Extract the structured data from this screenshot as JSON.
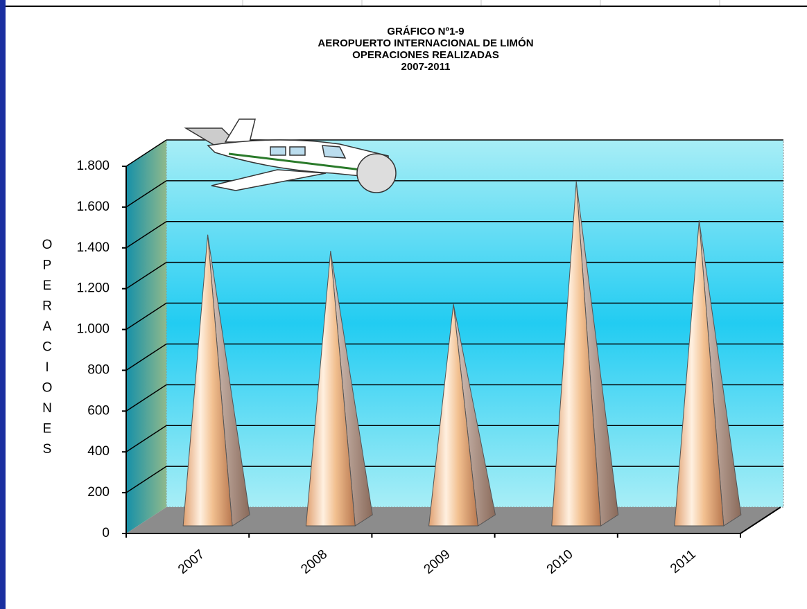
{
  "chart_data": {
    "type": "pyramid",
    "title": [
      "GRÁFICO Nº1-9",
      "AEROPUERTO INTERNACIONAL DE LIMÓN",
      "OPERACIONES REALIZADAS",
      "2007-2011"
    ],
    "y_label": "OPERACIONES",
    "categories": [
      "2007",
      "2008",
      "2009",
      "2010",
      "2011"
    ],
    "values": [
      1400,
      1320,
      1060,
      1660,
      1470
    ],
    "ylim": [
      0,
      1800
    ],
    "yticks": [
      0,
      200,
      400,
      600,
      800,
      {
        "value": 1000,
        "label": "1.000"
      },
      {
        "value": 1200,
        "label": "1.200"
      },
      {
        "value": 1400,
        "label": "1.400"
      },
      {
        "value": 1600,
        "label": "1.600"
      },
      {
        "value": 1800,
        "label": "1.800"
      }
    ],
    "grid": true
  }
}
